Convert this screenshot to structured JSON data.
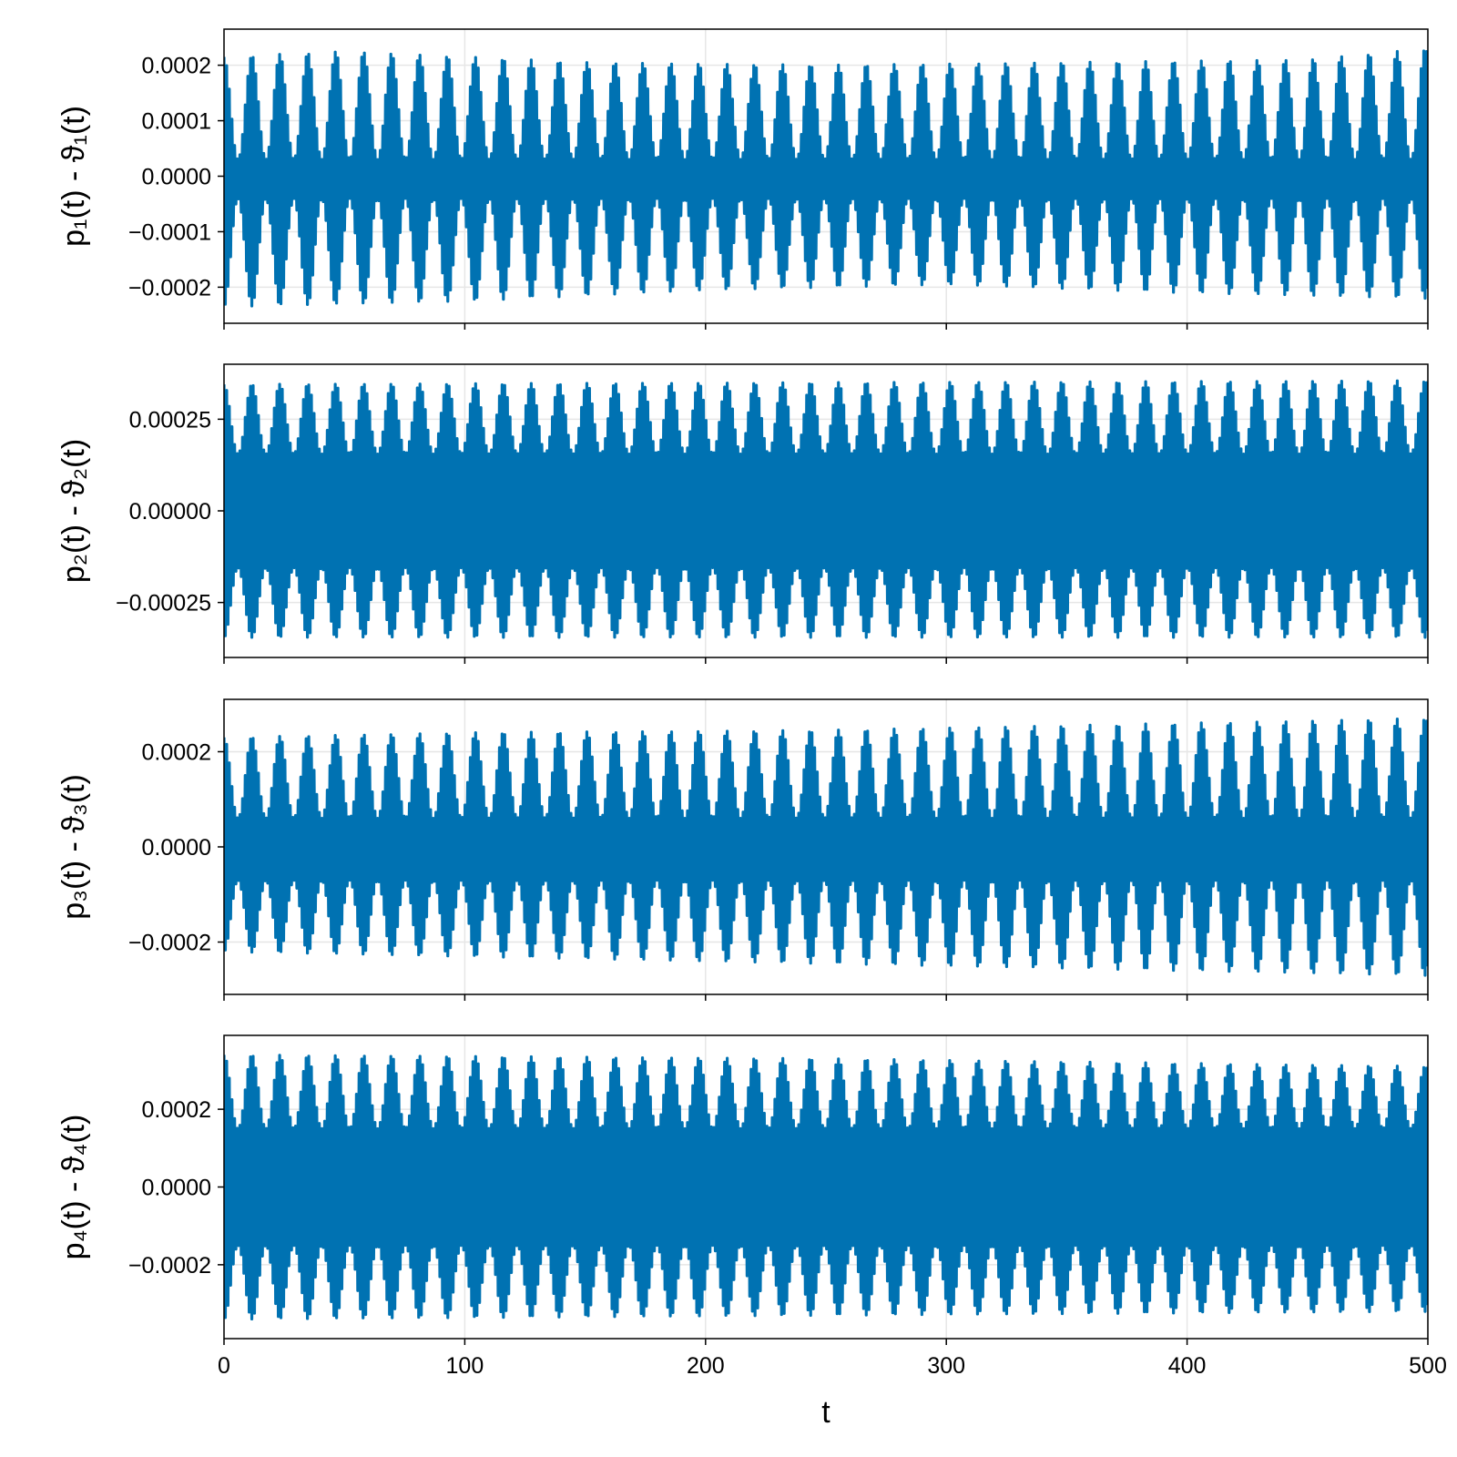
{
  "colors": {
    "series": "#0072B2",
    "grid": "#e6e6e6",
    "frame": "#000000",
    "background": "#ffffff"
  },
  "chart_data": [
    {
      "type": "line",
      "title": "",
      "xlabel": "",
      "ylabel": "p₁(t) - ϑ₁(t)",
      "xlim": [
        0,
        500
      ],
      "ylim": [
        -0.000265,
        0.000265
      ],
      "x_ticks": [
        0,
        100,
        200,
        300,
        400,
        500
      ],
      "x_tick_labels": [
        "",
        "",
        "",
        "",
        "",
        ""
      ],
      "y_ticks": [
        -0.0002,
        -0.0001,
        0.0,
        0.0001,
        0.0002
      ],
      "y_tick_labels": [
        "−0.0002",
        "−0.0001",
        "0.0000",
        "0.0001",
        "0.0002"
      ],
      "grid": true,
      "signal": {
        "period": 11.6,
        "peak_envelope": [
          [
            0,
            0.000215
          ],
          [
            50,
            0.000225
          ],
          [
            150,
            0.000205
          ],
          [
            250,
            0.0002
          ],
          [
            350,
            0.000205
          ],
          [
            450,
            0.00021
          ],
          [
            500,
            0.00023
          ]
        ],
        "trough_envelope": [
          [
            0,
            -0.000235
          ],
          [
            100,
            -0.000225
          ],
          [
            200,
            -0.000205
          ],
          [
            300,
            -0.000195
          ],
          [
            400,
            -0.00021
          ],
          [
            500,
            -0.00022
          ]
        ],
        "inner_max": 3e-05,
        "inner_min": -4e-05
      }
    },
    {
      "type": "line",
      "title": "",
      "xlabel": "",
      "ylabel": "p₂(t) - ϑ₂(t)",
      "xlim": [
        0,
        500
      ],
      "ylim": [
        -0.0004,
        0.0004
      ],
      "x_ticks": [
        0,
        100,
        200,
        300,
        400,
        500
      ],
      "x_tick_labels": [
        "",
        "",
        "",
        "",
        "",
        ""
      ],
      "y_ticks": [
        -0.00025,
        0.0,
        0.00025
      ],
      "y_tick_labels": [
        "−0.00025",
        "0.00000",
        "0.00025"
      ],
      "grid": true,
      "signal": {
        "period": 11.6,
        "peak_envelope": [
          [
            0,
            0.000345
          ],
          [
            500,
            0.000355
          ]
        ],
        "trough_envelope": [
          [
            0,
            -0.000345
          ],
          [
            500,
            -0.000345
          ]
        ],
        "inner_max": 0.000155,
        "inner_min": -0.000155
      }
    },
    {
      "type": "line",
      "title": "",
      "xlabel": "",
      "ylabel": "p₃(t) - ϑ₃(t)",
      "xlim": [
        0,
        500
      ],
      "ylim": [
        -0.00031,
        0.00031
      ],
      "x_ticks": [
        0,
        100,
        200,
        300,
        400,
        500
      ],
      "x_tick_labels": [
        "",
        "",
        "",
        "",
        "",
        ""
      ],
      "y_ticks": [
        -0.0002,
        0.0,
        0.0002
      ],
      "y_tick_labels": [
        "−0.0002",
        "0.0000",
        "0.0002"
      ],
      "grid": true,
      "signal": {
        "period": 11.6,
        "peak_envelope": [
          [
            0,
            0.00023
          ],
          [
            100,
            0.00024
          ],
          [
            250,
            0.000245
          ],
          [
            400,
            0.00026
          ],
          [
            500,
            0.00027
          ]
        ],
        "trough_envelope": [
          [
            0,
            -0.00022
          ],
          [
            100,
            -0.00023
          ],
          [
            250,
            -0.000245
          ],
          [
            400,
            -0.00026
          ],
          [
            500,
            -0.00027
          ]
        ],
        "inner_max": 6e-05,
        "inner_min": -7e-05
      }
    },
    {
      "type": "line",
      "title": "",
      "xlabel": "t",
      "ylabel": "p₄(t) - ϑ₄(t)",
      "xlim": [
        0,
        500
      ],
      "ylim": [
        -0.00039,
        0.00039
      ],
      "x_ticks": [
        0,
        100,
        200,
        300,
        400,
        500
      ],
      "x_tick_labels": [
        "0",
        "100",
        "200",
        "300",
        "400",
        "500"
      ],
      "y_ticks": [
        -0.0002,
        0.0,
        0.0002
      ],
      "y_tick_labels": [
        "−0.0002",
        "0.0000",
        "0.0002"
      ],
      "grid": true,
      "signal": {
        "period": 11.6,
        "peak_envelope": [
          [
            0,
            0.00034
          ],
          [
            250,
            0.00033
          ],
          [
            500,
            0.00031
          ]
        ],
        "trough_envelope": [
          [
            0,
            -0.00034
          ],
          [
            250,
            -0.00033
          ],
          [
            500,
            -0.00032
          ]
        ],
        "inner_max": 0.00015,
        "inner_min": -0.00015
      }
    }
  ]
}
